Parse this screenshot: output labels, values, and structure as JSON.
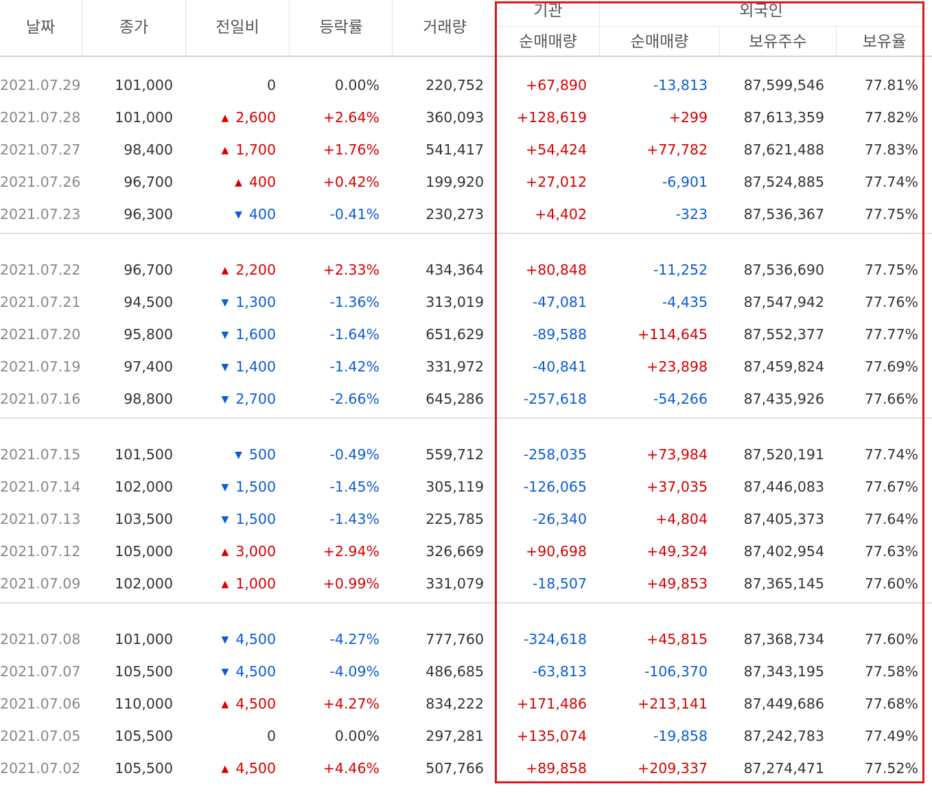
{
  "headers": {
    "date": "날짜",
    "close": "종가",
    "diff": "전일비",
    "rate": "등락률",
    "volume": "거래량",
    "institution": "기관",
    "foreign": "외국인",
    "inst_net": "순매매량",
    "foreign_net": "순매매량",
    "foreign_holding": "보유주수",
    "foreign_ratio": "보유율"
  },
  "colors": {
    "up": "#d60000",
    "down": "#0a5cd6",
    "highlight": "#e0151b"
  },
  "icons": {
    "up": "triangle-up-icon",
    "down": "triangle-down-icon"
  },
  "groups": [
    [
      {
        "date": "2021.07.29",
        "close": "101,000",
        "dir": "flat",
        "diff": "0",
        "rate": "0.00%",
        "volume": "220,752",
        "inst": "+67,890",
        "fnet": "-13,813",
        "fhold": "87,599,546",
        "fratio": "77.81%"
      },
      {
        "date": "2021.07.28",
        "close": "101,000",
        "dir": "up",
        "diff": "2,600",
        "rate": "+2.64%",
        "volume": "360,093",
        "inst": "+128,619",
        "fnet": "+299",
        "fhold": "87,613,359",
        "fratio": "77.82%"
      },
      {
        "date": "2021.07.27",
        "close": "98,400",
        "dir": "up",
        "diff": "1,700",
        "rate": "+1.76%",
        "volume": "541,417",
        "inst": "+54,424",
        "fnet": "+77,782",
        "fhold": "87,621,488",
        "fratio": "77.83%"
      },
      {
        "date": "2021.07.26",
        "close": "96,700",
        "dir": "up",
        "diff": "400",
        "rate": "+0.42%",
        "volume": "199,920",
        "inst": "+27,012",
        "fnet": "-6,901",
        "fhold": "87,524,885",
        "fratio": "77.74%"
      },
      {
        "date": "2021.07.23",
        "close": "96,300",
        "dir": "down",
        "diff": "400",
        "rate": "-0.41%",
        "volume": "230,273",
        "inst": "+4,402",
        "fnet": "-323",
        "fhold": "87,536,367",
        "fratio": "77.75%"
      }
    ],
    [
      {
        "date": "2021.07.22",
        "close": "96,700",
        "dir": "up",
        "diff": "2,200",
        "rate": "+2.33%",
        "volume": "434,364",
        "inst": "+80,848",
        "fnet": "-11,252",
        "fhold": "87,536,690",
        "fratio": "77.75%"
      },
      {
        "date": "2021.07.21",
        "close": "94,500",
        "dir": "down",
        "diff": "1,300",
        "rate": "-1.36%",
        "volume": "313,019",
        "inst": "-47,081",
        "fnet": "-4,435",
        "fhold": "87,547,942",
        "fratio": "77.76%"
      },
      {
        "date": "2021.07.20",
        "close": "95,800",
        "dir": "down",
        "diff": "1,600",
        "rate": "-1.64%",
        "volume": "651,629",
        "inst": "-89,588",
        "fnet": "+114,645",
        "fhold": "87,552,377",
        "fratio": "77.77%"
      },
      {
        "date": "2021.07.19",
        "close": "97,400",
        "dir": "down",
        "diff": "1,400",
        "rate": "-1.42%",
        "volume": "331,972",
        "inst": "-40,841",
        "fnet": "+23,898",
        "fhold": "87,459,824",
        "fratio": "77.69%"
      },
      {
        "date": "2021.07.16",
        "close": "98,800",
        "dir": "down",
        "diff": "2,700",
        "rate": "-2.66%",
        "volume": "645,286",
        "inst": "-257,618",
        "fnet": "-54,266",
        "fhold": "87,435,926",
        "fratio": "77.66%"
      }
    ],
    [
      {
        "date": "2021.07.15",
        "close": "101,500",
        "dir": "down",
        "diff": "500",
        "rate": "-0.49%",
        "volume": "559,712",
        "inst": "-258,035",
        "fnet": "+73,984",
        "fhold": "87,520,191",
        "fratio": "77.74%"
      },
      {
        "date": "2021.07.14",
        "close": "102,000",
        "dir": "down",
        "diff": "1,500",
        "rate": "-1.45%",
        "volume": "305,119",
        "inst": "-126,065",
        "fnet": "+37,035",
        "fhold": "87,446,083",
        "fratio": "77.67%"
      },
      {
        "date": "2021.07.13",
        "close": "103,500",
        "dir": "down",
        "diff": "1,500",
        "rate": "-1.43%",
        "volume": "225,785",
        "inst": "-26,340",
        "fnet": "+4,804",
        "fhold": "87,405,373",
        "fratio": "77.64%"
      },
      {
        "date": "2021.07.12",
        "close": "105,000",
        "dir": "up",
        "diff": "3,000",
        "rate": "+2.94%",
        "volume": "326,669",
        "inst": "+90,698",
        "fnet": "+49,324",
        "fhold": "87,402,954",
        "fratio": "77.63%"
      },
      {
        "date": "2021.07.09",
        "close": "102,000",
        "dir": "up",
        "diff": "1,000",
        "rate": "+0.99%",
        "volume": "331,079",
        "inst": "-18,507",
        "fnet": "+49,853",
        "fhold": "87,365,145",
        "fratio": "77.60%"
      }
    ],
    [
      {
        "date": "2021.07.08",
        "close": "101,000",
        "dir": "down",
        "diff": "4,500",
        "rate": "-4.27%",
        "volume": "777,760",
        "inst": "-324,618",
        "fnet": "+45,815",
        "fhold": "87,368,734",
        "fratio": "77.60%"
      },
      {
        "date": "2021.07.07",
        "close": "105,500",
        "dir": "down",
        "diff": "4,500",
        "rate": "-4.09%",
        "volume": "486,685",
        "inst": "-63,813",
        "fnet": "-106,370",
        "fhold": "87,343,195",
        "fratio": "77.58%"
      },
      {
        "date": "2021.07.06",
        "close": "110,000",
        "dir": "up",
        "diff": "4,500",
        "rate": "+4.27%",
        "volume": "834,222",
        "inst": "+171,486",
        "fnet": "+213,141",
        "fhold": "87,449,686",
        "fratio": "77.68%"
      },
      {
        "date": "2021.07.05",
        "close": "105,500",
        "dir": "flat",
        "diff": "0",
        "rate": "0.00%",
        "volume": "297,281",
        "inst": "+135,074",
        "fnet": "-19,858",
        "fhold": "87,242,783",
        "fratio": "77.49%"
      },
      {
        "date": "2021.07.02",
        "close": "105,500",
        "dir": "up",
        "diff": "4,500",
        "rate": "+4.46%",
        "volume": "507,766",
        "inst": "+89,858",
        "fnet": "+209,337",
        "fhold": "87,274,471",
        "fratio": "77.52%"
      }
    ]
  ]
}
